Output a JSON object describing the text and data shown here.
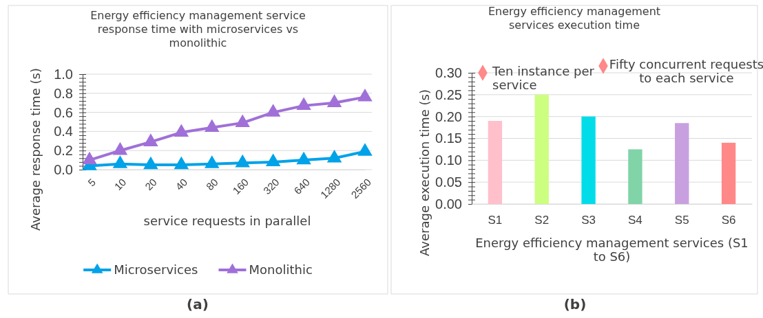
{
  "chart_data": [
    {
      "type": "line",
      "title": "Energy efficiency management service response time with microservices vs monolithic",
      "xlabel": "service requests in parallel",
      "ylabel": "Average response time (s)",
      "categories": [
        "5",
        "10",
        "20",
        "40",
        "80",
        "160",
        "320",
        "640",
        "1280",
        "2560"
      ],
      "series": [
        {
          "name": "Microservices",
          "color": "#00a2e8",
          "values": [
            0.04,
            0.06,
            0.05,
            0.05,
            0.06,
            0.07,
            0.08,
            0.1,
            0.12,
            0.19
          ]
        },
        {
          "name": "Monolithic",
          "color": "#a070d8",
          "values": [
            0.1,
            0.2,
            0.29,
            0.39,
            0.44,
            0.49,
            0.6,
            0.67,
            0.7,
            0.76
          ]
        }
      ],
      "ylim": [
        0,
        1
      ],
      "yticks": [
        {
          "value": 0,
          "label": "0.0"
        },
        {
          "value": 0.04,
          "label": null
        },
        {
          "value": 0.08,
          "label": null
        },
        {
          "value": 0.12,
          "label": null
        },
        {
          "value": 0.16,
          "label": null
        },
        {
          "value": 0.2,
          "label": "0.2"
        },
        {
          "value": 0.24,
          "label": null
        },
        {
          "value": 0.28,
          "label": null
        },
        {
          "value": 0.32,
          "label": null
        },
        {
          "value": 0.36,
          "label": null
        },
        {
          "value": 0.4,
          "label": "0.4"
        },
        {
          "value": 0.44,
          "label": null
        },
        {
          "value": 0.48,
          "label": null
        },
        {
          "value": 0.52,
          "label": null
        },
        {
          "value": 0.56,
          "label": null
        },
        {
          "value": 0.6,
          "label": "0.6"
        },
        {
          "value": 0.64,
          "label": null
        },
        {
          "value": 0.68,
          "label": null
        },
        {
          "value": 0.72,
          "label": null
        },
        {
          "value": 0.76,
          "label": null
        },
        {
          "value": 0.8,
          "label": "0.8"
        },
        {
          "value": 0.84,
          "label": null
        },
        {
          "value": 0.88,
          "label": null
        },
        {
          "value": 0.92,
          "label": null
        },
        {
          "value": 0.96,
          "label": null
        },
        {
          "value": 1,
          "label": "1.0"
        }
      ],
      "grid": "y",
      "legend": "bottom",
      "marker": "triangle",
      "line_style": "solid",
      "annotations": [
        "(a)"
      ]
    },
    {
      "type": "bar",
      "title": "Energy efficiency management services execution time",
      "xlabel": "Energy efficiency management services (S1 to S6)",
      "ylabel": "Average execution time (s)",
      "categories": [
        "S1",
        "S2",
        "S3",
        "S4",
        "S5",
        "S6"
      ],
      "values": [
        0.19,
        0.25,
        0.2,
        0.125,
        0.185,
        0.14
      ],
      "colors": [
        "#ffc0cb",
        "#ccff80",
        "#00dde8",
        "#80d4a8",
        "#c8a0e0",
        "#ff8888"
      ],
      "ylim": [
        0,
        0.3
      ],
      "yticks": [
        {
          "value": 0,
          "label": "0.00"
        },
        {
          "value": 0.01,
          "label": null
        },
        {
          "value": 0.02,
          "label": null
        },
        {
          "value": 0.03,
          "label": null
        },
        {
          "value": 0.04,
          "label": null
        },
        {
          "value": 0.05,
          "label": "0.05"
        },
        {
          "value": 0.06,
          "label": null
        },
        {
          "value": 0.07,
          "label": null
        },
        {
          "value": 0.08,
          "label": null
        },
        {
          "value": 0.09,
          "label": null
        },
        {
          "value": 0.1,
          "label": "0.10"
        },
        {
          "value": 0.11,
          "label": null
        },
        {
          "value": 0.12,
          "label": null
        },
        {
          "value": 0.13,
          "label": null
        },
        {
          "value": 0.14,
          "label": null
        },
        {
          "value": 0.15,
          "label": "0.15"
        },
        {
          "value": 0.16,
          "label": null
        },
        {
          "value": 0.17,
          "label": null
        },
        {
          "value": 0.18,
          "label": null
        },
        {
          "value": 0.19,
          "label": null
        },
        {
          "value": 0.2,
          "label": "0.20"
        },
        {
          "value": 0.21,
          "label": null
        },
        {
          "value": 0.22,
          "label": null
        },
        {
          "value": 0.23,
          "label": null
        },
        {
          "value": 0.24,
          "label": null
        },
        {
          "value": 0.25,
          "label": "0.25"
        },
        {
          "value": 0.26,
          "label": null
        },
        {
          "value": 0.27,
          "label": null
        },
        {
          "value": 0.28,
          "label": null
        },
        {
          "value": 0.29,
          "label": null
        },
        {
          "value": 0.3,
          "label": "0.30"
        }
      ],
      "grid": "y",
      "annotations": [
        "Ten instance per service",
        "Fifty concurrent requests to each service",
        "(b)"
      ]
    }
  ]
}
